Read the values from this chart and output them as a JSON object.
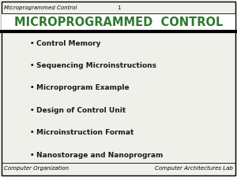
{
  "header_left": "Microprogrammed Control",
  "header_center": "1",
  "title": "MICROPROGRAMMED  CONTROL",
  "title_color": "#2d7a2d",
  "title_fontsize": 10.5,
  "bullet_items": [
    "Control Memory",
    "Sequencing Microinstructions",
    "Microprogram Example",
    "Design of Control Unit",
    "Microinstruction Format",
    "Nanostorage and Nanoprogram"
  ],
  "bullet_color": "#1a1a1a",
  "bullet_fontsize": 6.5,
  "footer_left": "Computer Organization",
  "footer_right": "Computer Architectures Lab",
  "footer_fontsize": 5.0,
  "header_fontsize": 5.0,
  "bg_color": "#f0f0eb",
  "title_bg_color": "#ffffff",
  "border_color": "#000000",
  "line_color": "#000000"
}
